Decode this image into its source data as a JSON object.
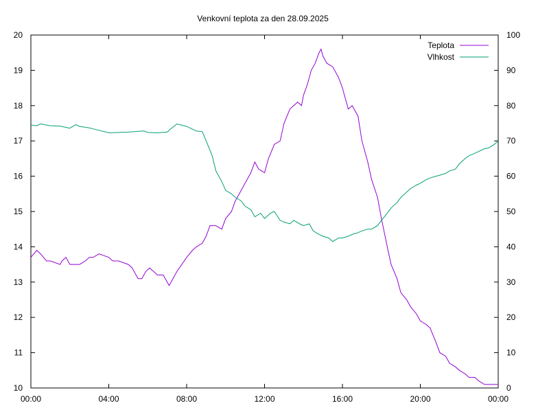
{
  "chart_data": {
    "type": "line",
    "title": "Venkovní teplota za den 28.09.2025",
    "xlabel": "",
    "ylabel": "",
    "y2label": "",
    "x_ticks": [
      "00:00",
      "04:00",
      "08:00",
      "12:00",
      "16:00",
      "20:00",
      "00:00"
    ],
    "x_range_hours": [
      0,
      24
    ],
    "ylim": [
      10,
      20
    ],
    "y_ticks": [
      10,
      11,
      12,
      13,
      14,
      15,
      16,
      17,
      18,
      19,
      20
    ],
    "y2lim": [
      0,
      100
    ],
    "y2_ticks": [
      0,
      10,
      20,
      30,
      40,
      50,
      60,
      70,
      80,
      90,
      100
    ],
    "grid": false,
    "legend_position": "top-right",
    "series": [
      {
        "name": "Teplota",
        "axis": "left",
        "color": "#9400d3",
        "x": [
          0,
          0.3,
          0.5,
          0.8,
          1.0,
          1.5,
          1.6,
          1.8,
          2.0,
          2.5,
          2.8,
          3.0,
          3.2,
          3.5,
          4.0,
          4.2,
          4.5,
          5.0,
          5.2,
          5.5,
          5.7,
          5.9,
          6.1,
          6.3,
          6.5,
          6.8,
          7.0,
          7.1,
          7.3,
          7.5,
          8.0,
          8.3,
          8.5,
          8.8,
          9.0,
          9.2,
          9.5,
          9.8,
          10.0,
          10.3,
          10.5,
          10.8,
          11.0,
          11.3,
          11.5,
          11.7,
          12.0,
          12.2,
          12.5,
          12.8,
          13.0,
          13.3,
          13.5,
          13.7,
          13.9,
          14.0,
          14.2,
          14.4,
          14.6,
          14.8,
          14.9,
          15.0,
          15.2,
          15.5,
          15.8,
          16.0,
          16.3,
          16.5,
          16.8,
          17.0,
          17.3,
          17.5,
          17.8,
          18.0,
          18.3,
          18.5,
          18.8,
          19.0,
          19.3,
          19.5,
          19.8,
          20.0,
          20.3,
          20.5,
          20.8,
          21.0,
          21.3,
          21.5,
          21.8,
          22.0,
          22.3,
          22.5,
          22.8,
          23.0,
          23.3,
          23.5,
          23.7,
          24.0
        ],
        "values": [
          13.7,
          13.9,
          13.8,
          13.6,
          13.6,
          13.5,
          13.6,
          13.7,
          13.5,
          13.5,
          13.6,
          13.7,
          13.7,
          13.8,
          13.7,
          13.6,
          13.6,
          13.5,
          13.4,
          13.1,
          13.1,
          13.3,
          13.4,
          13.3,
          13.2,
          13.2,
          13.0,
          12.9,
          13.1,
          13.3,
          13.7,
          13.9,
          14.0,
          14.1,
          14.3,
          14.6,
          14.6,
          14.5,
          14.8,
          15.0,
          15.3,
          15.6,
          15.8,
          16.1,
          16.4,
          16.2,
          16.1,
          16.5,
          16.9,
          17.0,
          17.5,
          17.9,
          18.0,
          18.1,
          18.0,
          18.3,
          18.6,
          19.0,
          19.2,
          19.5,
          19.6,
          19.4,
          19.2,
          19.1,
          18.8,
          18.5,
          17.9,
          18.0,
          17.7,
          17.0,
          16.4,
          15.9,
          15.4,
          14.8,
          14.0,
          13.5,
          13.1,
          12.7,
          12.5,
          12.3,
          12.1,
          11.9,
          11.8,
          11.7,
          11.3,
          11.0,
          10.9,
          10.7,
          10.6,
          10.5,
          10.4,
          10.3,
          10.3,
          10.2,
          10.1,
          10.1,
          10.1,
          10.1
        ]
      },
      {
        "name": "Vlhkost",
        "axis": "right",
        "color": "#009e73",
        "x": [
          0,
          0.3,
          0.5,
          1.0,
          1.5,
          2.0,
          2.3,
          2.5,
          3.0,
          3.5,
          4.0,
          4.5,
          5.0,
          5.5,
          5.8,
          6.0,
          6.5,
          7.0,
          7.2,
          7.5,
          8.0,
          8.5,
          8.8,
          9.0,
          9.3,
          9.5,
          9.8,
          10.0,
          10.3,
          10.5,
          10.8,
          11.0,
          11.3,
          11.5,
          11.8,
          12.0,
          12.3,
          12.5,
          12.8,
          13.0,
          13.3,
          13.5,
          13.8,
          14.0,
          14.3,
          14.5,
          14.8,
          15.0,
          15.3,
          15.5,
          15.8,
          16.0,
          16.3,
          16.5,
          16.8,
          17.0,
          17.3,
          17.5,
          17.8,
          18.0,
          18.3,
          18.5,
          18.8,
          19.0,
          19.3,
          19.5,
          19.8,
          20.0,
          20.3,
          20.5,
          20.8,
          21.0,
          21.3,
          21.5,
          21.8,
          22.0,
          22.3,
          22.5,
          22.8,
          23.0,
          23.3,
          23.5,
          23.8,
          24.0
        ],
        "values": [
          74.5,
          74.3,
          74.8,
          74.3,
          74.2,
          73.6,
          74.6,
          74.1,
          73.7,
          73.0,
          72.3,
          72.4,
          72.5,
          72.7,
          72.8,
          72.4,
          72.3,
          72.5,
          73.5,
          74.8,
          74.1,
          72.8,
          72.6,
          70.0,
          66.0,
          61.5,
          58.5,
          56.0,
          55.0,
          54.0,
          53.0,
          51.5,
          50.5,
          48.5,
          49.5,
          48.0,
          49.5,
          50.0,
          47.5,
          47.0,
          46.5,
          47.5,
          46.5,
          46.0,
          46.5,
          44.5,
          43.5,
          43.0,
          42.5,
          41.5,
          42.5,
          42.5,
          43.0,
          43.5,
          44.0,
          44.5,
          45.0,
          45.0,
          46.0,
          47.5,
          49.5,
          51.0,
          52.5,
          54.0,
          55.5,
          56.5,
          57.5,
          58.0,
          59.0,
          59.5,
          60.0,
          60.3,
          60.8,
          61.5,
          62.0,
          63.5,
          65.0,
          65.8,
          66.5,
          67.0,
          67.8,
          68.0,
          69.0,
          70.0
        ]
      }
    ]
  }
}
